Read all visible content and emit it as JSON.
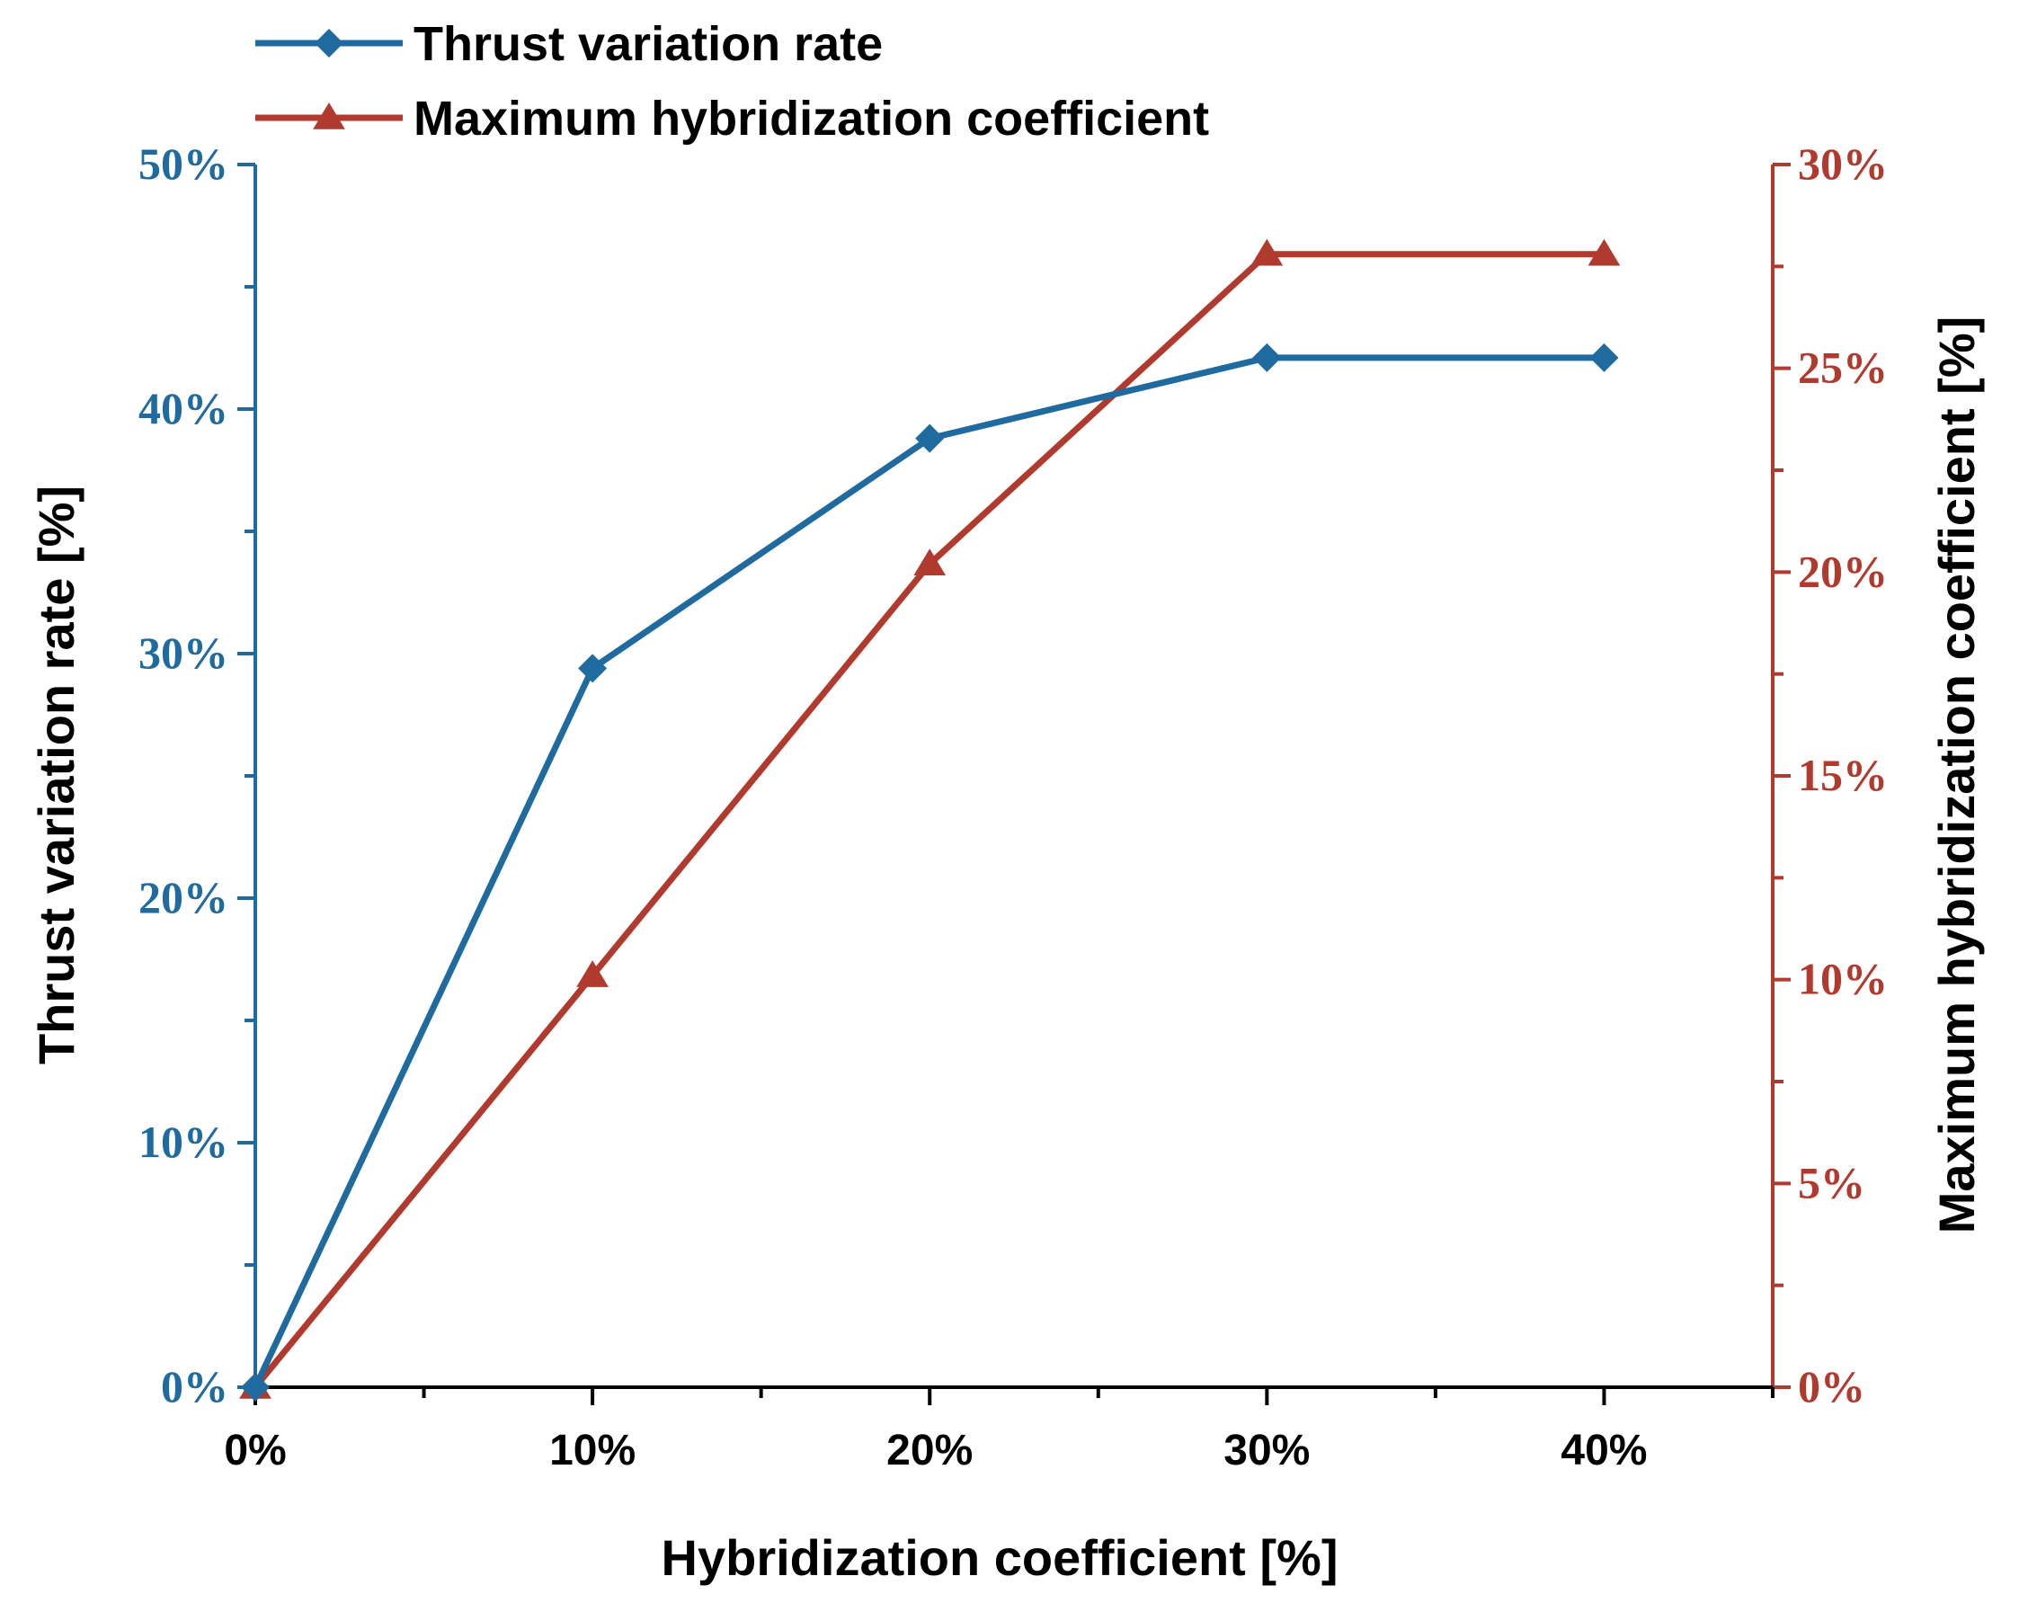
{
  "chart_data": {
    "type": "line",
    "xlabel": "Hybridization coefficient [%]",
    "ylabel_left": "Thrust variation rate [%]",
    "ylabel_right": "Maximum hybridization coefficient [%]",
    "x": [
      0,
      10,
      20,
      30,
      40
    ],
    "xlim": [
      0,
      45
    ],
    "xticks": [
      0,
      10,
      20,
      30,
      40
    ],
    "xtick_labels": [
      "0%",
      "10%",
      "20%",
      "30%",
      "40%"
    ],
    "y_left_lim": [
      0,
      50
    ],
    "y_left_ticks": [
      0,
      10,
      20,
      30,
      40,
      50
    ],
    "y_left_tick_labels": [
      "0%",
      "10%",
      "20%",
      "30%",
      "40%",
      "50%"
    ],
    "y_right_lim": [
      0,
      30
    ],
    "y_right_ticks": [
      0,
      5,
      10,
      15,
      20,
      25,
      30
    ],
    "y_right_tick_labels": [
      "0%",
      "5%",
      "10%",
      "15%",
      "20%",
      "25%",
      "30%"
    ],
    "series": [
      {
        "name": "Thrust variation rate",
        "axis": "left",
        "marker": "diamond",
        "color": "#1f6a9e",
        "values": [
          0,
          29.4,
          38.8,
          42.1,
          42.1
        ]
      },
      {
        "name": "Maximum hybridization coefficient",
        "axis": "right",
        "marker": "triangle",
        "color": "#b03a2e",
        "values": [
          0,
          10.1,
          20.2,
          27.8,
          27.8
        ]
      }
    ],
    "legend": "top-left",
    "grid": false
  }
}
